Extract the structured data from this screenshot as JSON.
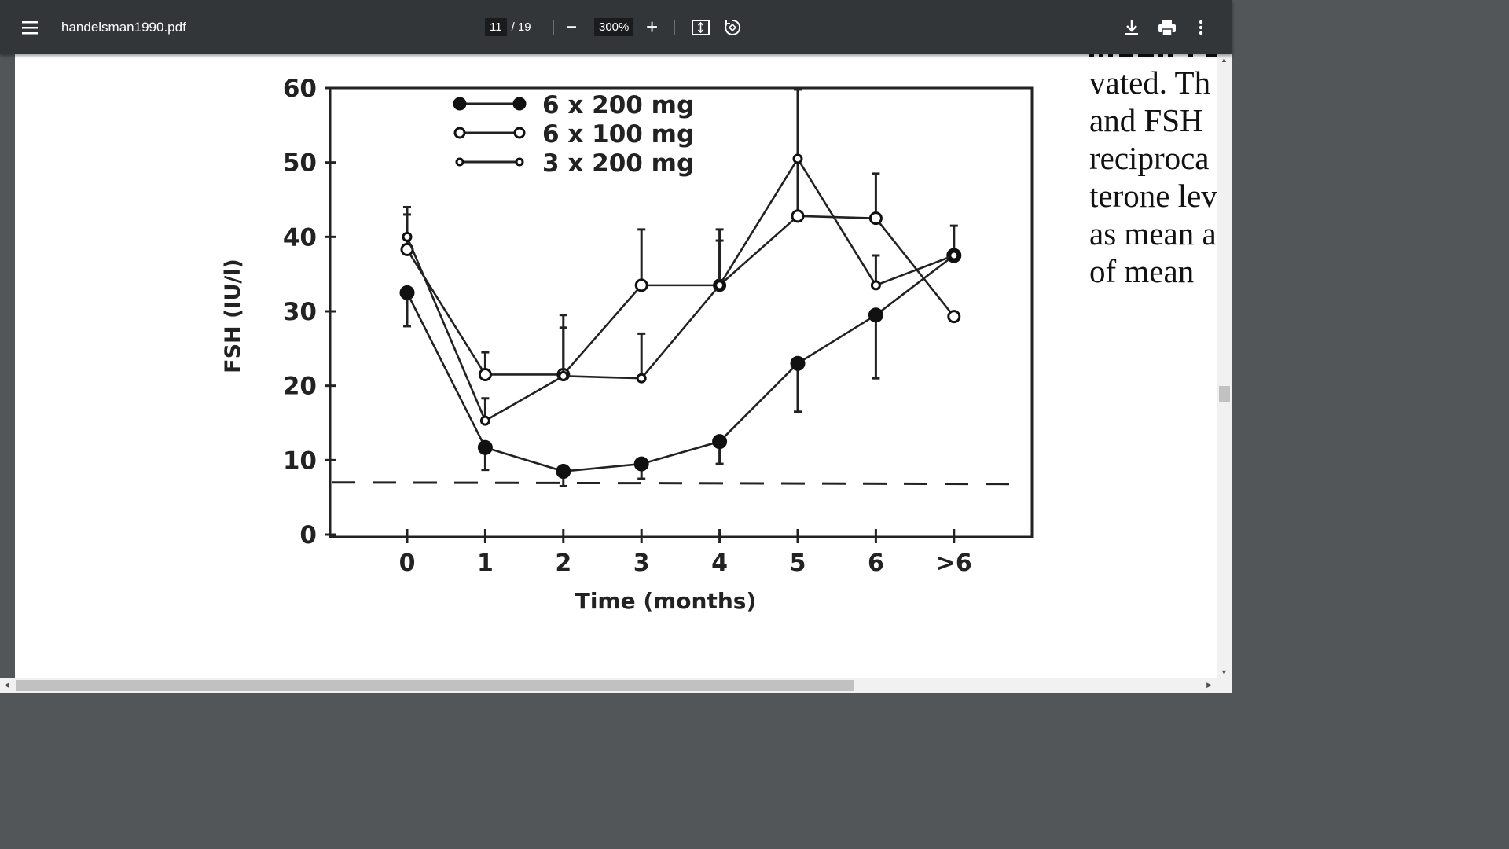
{
  "toolbar": {
    "menu_icon": "hamburger-icon",
    "title": "handelsman1990.pdf",
    "page_current": "11",
    "page_total": "/ 19",
    "zoom": "300%",
    "zoom_out": "−",
    "zoom_in": "+",
    "fit_icon": "fit-page-icon",
    "rotate_icon": "rotate-icon",
    "download_icon": "download-icon",
    "print_icon": "print-icon",
    "more_icon": "more-vert-icon"
  },
  "page_text": [
    "vated. Th",
    "and FSH",
    "reciproca",
    "terone lev",
    "as mean a",
    "of mean"
  ],
  "chart_data": {
    "type": "line",
    "xlabel": "Time (months)",
    "ylabel": "FSH (IU/l)",
    "categories": [
      "0",
      "1",
      "2",
      "3",
      "4",
      "5",
      "6",
      ">6"
    ],
    "yticks": [
      "0",
      "10",
      "20",
      "30",
      "40",
      "50",
      "60"
    ],
    "ylim": [
      0,
      60
    ],
    "reference_line": {
      "value": 7,
      "style": "dashed"
    },
    "legend_placement": "top-left",
    "series": [
      {
        "name": "6 x 200 mg",
        "marker": "filled",
        "values": [
          32.5,
          11.7,
          8.5,
          9.5,
          12.5,
          23,
          29.5,
          37.5
        ],
        "error": [
          4.5,
          3,
          2,
          2,
          3,
          6.5,
          8.5,
          4
        ]
      },
      {
        "name": "6 x 100 mg",
        "marker": "open",
        "values": [
          38.3,
          21.5,
          21.5,
          33.5,
          33.5,
          42.8,
          42.5,
          29.3
        ],
        "error": [
          5.7,
          3,
          8,
          7.5,
          7.5,
          17,
          6,
          0
        ]
      },
      {
        "name": "3 x 200 mg",
        "marker": "open-small",
        "values": [
          40,
          15.3,
          21.3,
          21,
          33.5,
          50.5,
          33.5,
          37.5
        ],
        "error": [
          3,
          3,
          6.5,
          6,
          6,
          0,
          4,
          0
        ]
      }
    ]
  }
}
